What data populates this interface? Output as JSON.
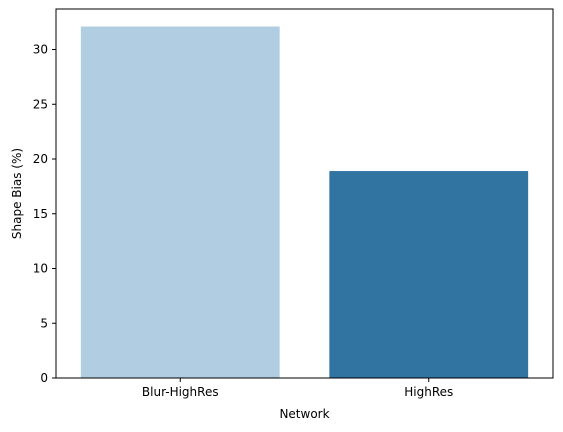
{
  "chart_data": {
    "type": "bar",
    "categories": [
      "Blur-HighRes",
      "HighRes"
    ],
    "values": [
      32.1,
      18.9
    ],
    "colors": [
      "#b0cde1",
      "#3174a1"
    ],
    "title": "",
    "xlabel": "Network",
    "ylabel": "Shape Bias (%)",
    "ylim": [
      0,
      33.7
    ],
    "yticks": [
      0,
      5,
      10,
      15,
      20,
      25,
      30
    ],
    "grid": false,
    "legend": "none"
  }
}
